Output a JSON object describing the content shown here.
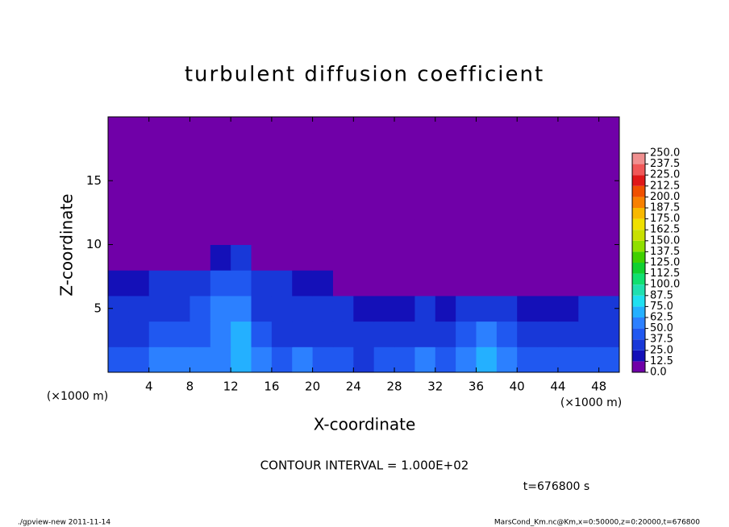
{
  "chart_data": {
    "type": "contour",
    "title": "turbulent diffusion coefficient",
    "xlabel": "X-coordinate",
    "ylabel": "Z-coordinate",
    "y_unit": "(×1000 m)",
    "x_unit": "(×1000 m)",
    "contour_interval": "CONTOUR INTERVAL = 1.000E+02",
    "time": "t=676800 s",
    "footer_left": "./gpview-new  2011-11-14",
    "footer_right": "MarsCond_Km.nc@Km,x=0:50000,z=0:20000,t=676800",
    "xlim": [
      0,
      50
    ],
    "ylim": [
      0,
      20
    ],
    "xticks": [
      4,
      8,
      12,
      16,
      20,
      24,
      28,
      32,
      36,
      40,
      44,
      48
    ],
    "yticks": [
      5,
      10,
      15
    ],
    "x": [
      1,
      3,
      5,
      7,
      9,
      11,
      13,
      15,
      17,
      19,
      21,
      23,
      25,
      27,
      29,
      31,
      33,
      35,
      37,
      39,
      41,
      43,
      45,
      47,
      49
    ],
    "y": [
      1,
      3,
      5,
      7,
      9,
      11,
      13,
      15,
      17,
      19
    ],
    "z": [
      [
        40,
        45,
        50,
        55,
        50,
        60,
        70,
        60,
        45,
        50,
        40,
        45,
        35,
        40,
        45,
        50,
        40,
        55,
        65,
        55,
        40,
        45,
        40,
        45,
        40
      ],
      [
        30,
        35,
        40,
        40,
        45,
        60,
        65,
        45,
        35,
        35,
        30,
        35,
        30,
        30,
        25,
        35,
        25,
        40,
        50,
        40,
        30,
        35,
        30,
        35,
        30
      ],
      [
        30,
        30,
        30,
        35,
        40,
        50,
        50,
        35,
        30,
        30,
        25,
        25,
        20,
        20,
        20,
        25,
        20,
        25,
        25,
        25,
        20,
        20,
        20,
        25,
        25
      ],
      [
        15,
        20,
        25,
        25,
        30,
        40,
        40,
        30,
        25,
        20,
        15,
        0,
        0,
        0,
        0,
        0,
        0,
        0,
        0,
        0,
        0,
        0,
        0,
        0,
        0
      ],
      [
        0,
        0,
        0,
        0,
        0,
        20,
        25,
        0,
        0,
        0,
        0,
        0,
        0,
        0,
        0,
        0,
        0,
        0,
        0,
        0,
        0,
        0,
        0,
        0,
        0
      ],
      [
        0,
        0,
        0,
        0,
        0,
        0,
        0,
        0,
        0,
        0,
        0,
        0,
        0,
        0,
        0,
        0,
        0,
        0,
        0,
        0,
        0,
        0,
        0,
        0,
        0
      ],
      [
        0,
        0,
        0,
        0,
        0,
        0,
        0,
        0,
        0,
        0,
        0,
        0,
        0,
        0,
        0,
        0,
        0,
        0,
        0,
        0,
        0,
        0,
        0,
        0,
        0
      ],
      [
        0,
        0,
        0,
        0,
        0,
        0,
        0,
        0,
        0,
        0,
        0,
        0,
        0,
        0,
        0,
        0,
        0,
        0,
        0,
        0,
        0,
        0,
        0,
        0,
        0
      ],
      [
        0,
        0,
        0,
        0,
        0,
        0,
        0,
        0,
        0,
        0,
        0,
        0,
        0,
        0,
        0,
        0,
        0,
        0,
        0,
        0,
        0,
        0,
        0,
        0,
        0
      ],
      [
        0,
        0,
        0,
        0,
        0,
        0,
        0,
        0,
        0,
        0,
        0,
        0,
        0,
        0,
        0,
        0,
        0,
        0,
        0,
        0,
        0,
        0,
        0,
        0,
        0
      ]
    ],
    "levels": [
      {
        "value": 0,
        "label": "0.0"
      },
      {
        "value": 12.5,
        "label": "12.5"
      },
      {
        "value": 25,
        "label": "25.0"
      },
      {
        "value": 37.5,
        "label": "37.5"
      },
      {
        "value": 50,
        "label": "50.0"
      },
      {
        "value": 62.5,
        "label": "62.5"
      },
      {
        "value": 75,
        "label": "75.0"
      },
      {
        "value": 87.5,
        "label": "87.5"
      },
      {
        "value": 100,
        "label": "100.0"
      },
      {
        "value": 112.5,
        "label": "112.5"
      },
      {
        "value": 125,
        "label": "125.0"
      },
      {
        "value": 137.5,
        "label": "137.5"
      },
      {
        "value": 150,
        "label": "150.0"
      },
      {
        "value": 162.5,
        "label": "162.5"
      },
      {
        "value": 175,
        "label": "175.0"
      },
      {
        "value": 187.5,
        "label": "187.5"
      },
      {
        "value": 200,
        "label": "200.0"
      },
      {
        "value": 212.5,
        "label": "212.5"
      },
      {
        "value": 225,
        "label": "225.0"
      },
      {
        "value": 237.5,
        "label": "237.5"
      },
      {
        "value": 250,
        "label": "250.0"
      }
    ],
    "colors": [
      "#7000a8",
      "#1410b8",
      "#1838d8",
      "#2058f0",
      "#2c80ff",
      "#24b0ff",
      "#20e0f0",
      "#20e0b0",
      "#10e070",
      "#10d030",
      "#40d000",
      "#90e000",
      "#c8e000",
      "#f0e000",
      "#f8b800",
      "#f88000",
      "#f05000",
      "#e01818",
      "#f05858",
      "#f09090"
    ]
  }
}
